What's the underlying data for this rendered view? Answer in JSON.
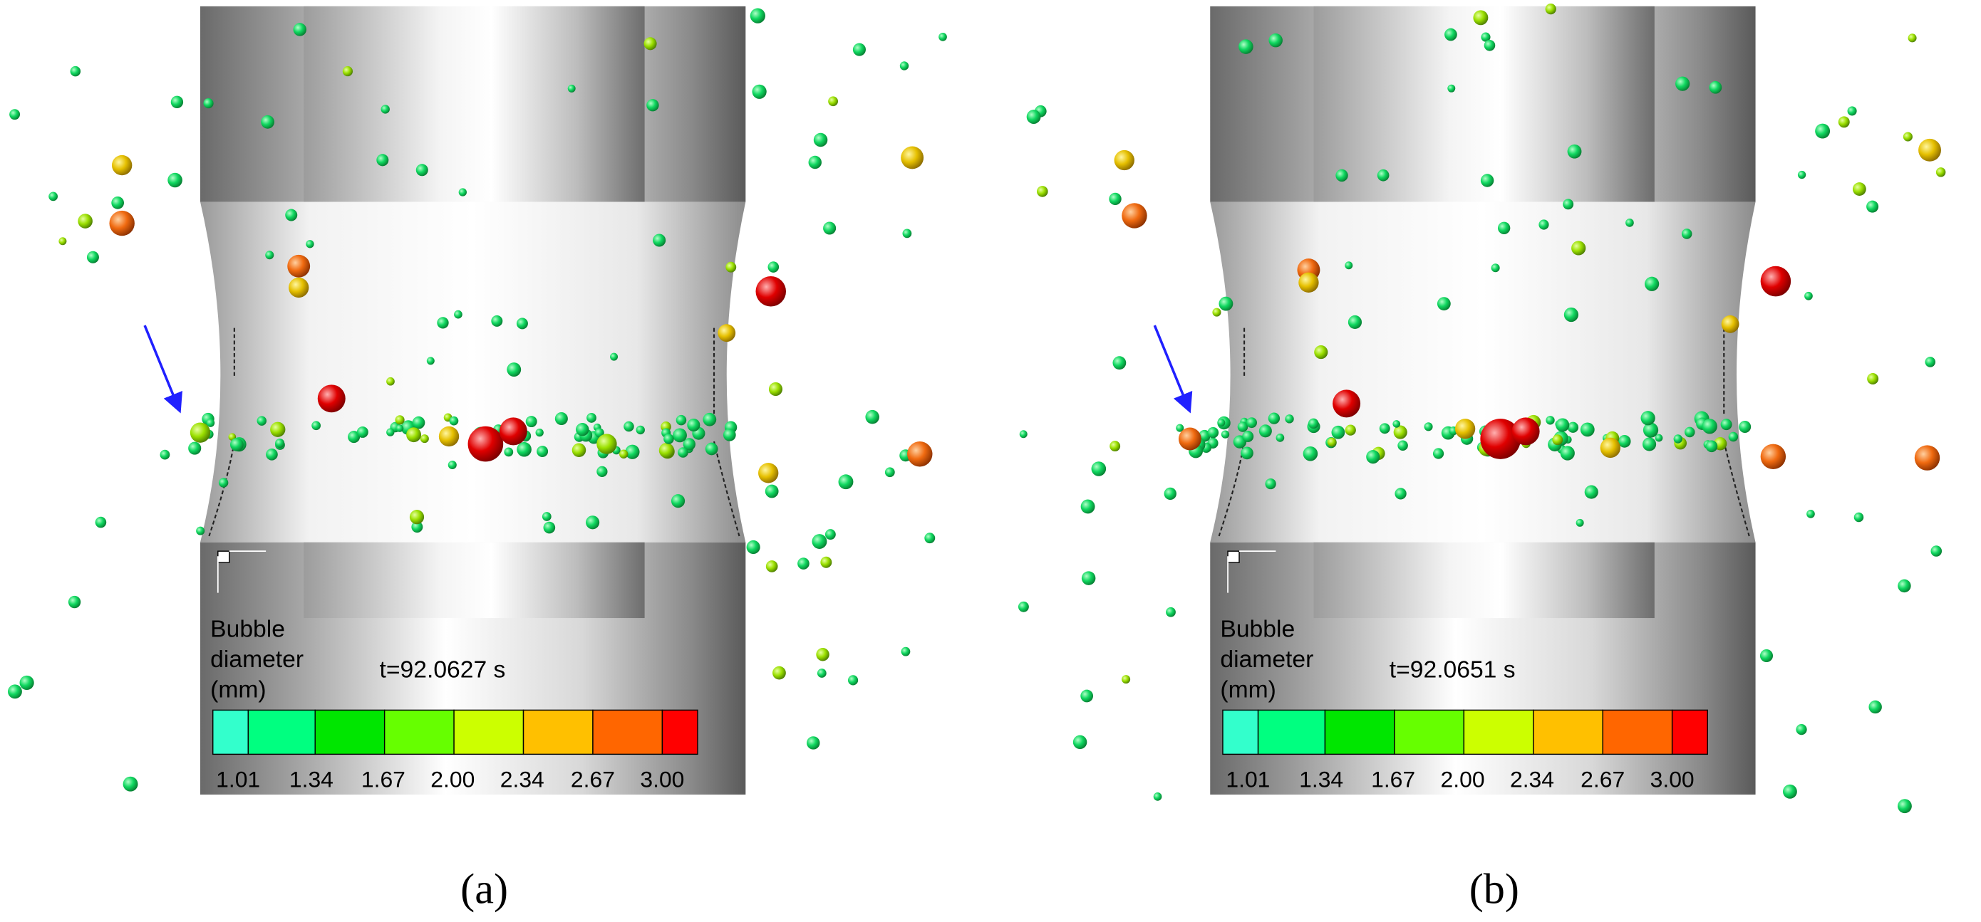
{
  "panels": [
    {
      "legend_title": [
        "Bubble",
        "diameter",
        "(mm)"
      ],
      "time": "t=92.0627 s",
      "ticks": [
        "1.01",
        "1.34",
        "1.67",
        "2.00",
        "2.34",
        "2.67",
        "3.00"
      ],
      "caption": "(a)"
    },
    {
      "legend_title": [
        "Bubble",
        "diameter",
        "(mm)"
      ],
      "time": "t=92.0651 s",
      "ticks": [
        "1.01",
        "1.34",
        "1.67",
        "2.00",
        "2.34",
        "2.67",
        "3.00"
      ],
      "caption": "(b)"
    }
  ]
}
